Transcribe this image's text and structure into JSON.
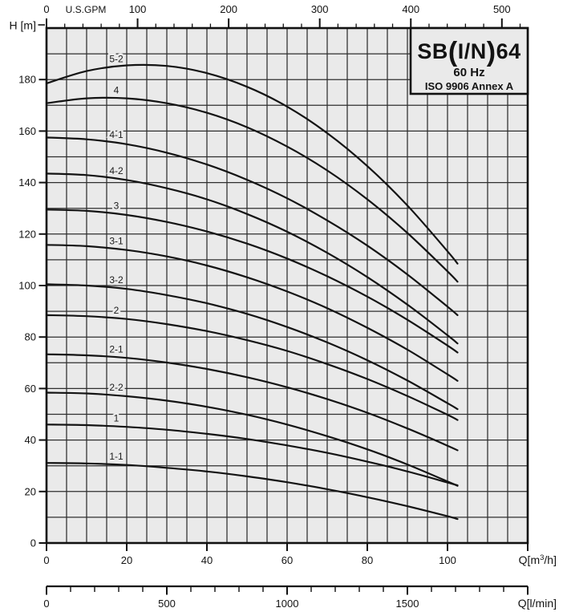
{
  "colors": {
    "background": "#ffffff",
    "plot_bg": "#eaeaea",
    "grid": "#2f2f2f",
    "curve": "#141414",
    "border": "#111111",
    "text": "#131313"
  },
  "title_block": {
    "model": "SB(I/N)64",
    "model_parts": [
      "SB",
      "(",
      "I/N",
      ")",
      "64"
    ],
    "frequency": "60 Hz",
    "standard": "ISO 9906 Annex A"
  },
  "chart_data": {
    "type": "line",
    "title": "SB(I/N)64",
    "subtitle": "60 Hz",
    "standard": "ISO 9906 Annex A",
    "grid": true,
    "legend": "none",
    "xlabel": "Q[m³/h]",
    "ylabel": "H [m]",
    "xlim": [
      0,
      120
    ],
    "ylim": [
      0,
      200
    ],
    "axes": {
      "y": {
        "label": "H [m]",
        "unit": "m",
        "min": 0,
        "max": 200,
        "label_ticks": [
          0,
          20,
          40,
          60,
          80,
          100,
          120,
          140,
          160,
          180
        ],
        "grid_step": 10
      },
      "x_m3h": {
        "label": "Q[m³/h]",
        "label_parts": {
          "pre": "Q[m",
          "sup": "3",
          "post": "/h]"
        },
        "unit": "m³/h",
        "min": 0,
        "max": 120,
        "label_ticks": [
          0,
          20,
          40,
          60,
          80,
          100
        ],
        "end_tick": 120,
        "grid_step": 5
      },
      "x_gpm": {
        "label": "U.S.GPM",
        "unit": "US gpm",
        "min": 0,
        "max": 520,
        "label_ticks": [
          0,
          100,
          200,
          300,
          400,
          500
        ],
        "minor_step": 20
      },
      "x_lmin": {
        "label": "Q[l/min]",
        "unit": "l/min",
        "min": 0,
        "max": 2000,
        "major_ticks": [
          0,
          500,
          1000,
          1500,
          2000
        ],
        "label_ticks": [
          0,
          500,
          1000,
          1500
        ],
        "minor_step": 100
      }
    },
    "series": [
      {
        "name": "5-2",
        "points": [
          [
            0,
            178.5
          ],
          [
            10,
            183.3
          ],
          [
            20,
            185.5
          ],
          [
            30,
            185.3
          ],
          [
            40,
            182.5
          ],
          [
            50,
            177.2
          ],
          [
            60,
            169.5
          ],
          [
            70,
            159.2
          ],
          [
            80,
            146.4
          ],
          [
            90,
            131.1
          ],
          [
            100,
            113.3
          ],
          [
            102.5,
            108.5
          ]
        ]
      },
      {
        "name": "4",
        "points": [
          [
            0,
            170.8
          ],
          [
            10,
            172.7
          ],
          [
            20,
            172.7
          ],
          [
            30,
            170.8
          ],
          [
            40,
            167.1
          ],
          [
            50,
            161.5
          ],
          [
            60,
            154.0
          ],
          [
            70,
            144.7
          ],
          [
            80,
            133.5
          ],
          [
            90,
            120.4
          ],
          [
            100,
            105.5
          ],
          [
            102.5,
            101.5
          ]
        ]
      },
      {
        "name": "4-1",
        "points": [
          [
            0,
            157.5
          ],
          [
            10,
            156.8
          ],
          [
            20,
            154.9
          ],
          [
            30,
            151.6
          ],
          [
            40,
            147.0
          ],
          [
            50,
            141.1
          ],
          [
            60,
            133.9
          ],
          [
            70,
            125.3
          ],
          [
            80,
            115.5
          ],
          [
            90,
            104.3
          ],
          [
            100,
            91.8
          ],
          [
            102.5,
            88.5
          ]
        ]
      },
      {
        "name": "4-2",
        "points": [
          [
            0,
            143.5
          ],
          [
            10,
            142.9
          ],
          [
            20,
            141.0
          ],
          [
            30,
            137.8
          ],
          [
            40,
            133.5
          ],
          [
            50,
            127.8
          ],
          [
            60,
            120.9
          ],
          [
            70,
            112.7
          ],
          [
            80,
            103.3
          ],
          [
            90,
            92.6
          ],
          [
            100,
            80.7
          ],
          [
            102.5,
            77.5
          ]
        ]
      },
      {
        "name": "3",
        "points": [
          [
            0,
            129.5
          ],
          [
            10,
            129.0
          ],
          [
            20,
            127.4
          ],
          [
            30,
            124.7
          ],
          [
            40,
            121.0
          ],
          [
            50,
            116.3
          ],
          [
            60,
            110.5
          ],
          [
            70,
            103.6
          ],
          [
            80,
            95.7
          ],
          [
            90,
            86.7
          ],
          [
            100,
            76.7
          ],
          [
            102.5,
            74.0
          ]
        ]
      },
      {
        "name": "3-1",
        "points": [
          [
            0,
            115.8
          ],
          [
            10,
            115.3
          ],
          [
            20,
            113.8
          ],
          [
            30,
            111.3
          ],
          [
            40,
            107.8
          ],
          [
            50,
            103.2
          ],
          [
            60,
            97.7
          ],
          [
            70,
            91.2
          ],
          [
            80,
            83.6
          ],
          [
            90,
            75.1
          ],
          [
            100,
            65.5
          ],
          [
            102.5,
            63.0
          ]
        ]
      },
      {
        "name": "3-2",
        "points": [
          [
            0,
            100.5
          ],
          [
            10,
            100.0
          ],
          [
            20,
            98.7
          ],
          [
            30,
            96.3
          ],
          [
            40,
            93.1
          ],
          [
            50,
            89.0
          ],
          [
            60,
            83.9
          ],
          [
            70,
            77.9
          ],
          [
            80,
            71.0
          ],
          [
            90,
            63.1
          ],
          [
            100,
            54.3
          ],
          [
            102.5,
            52.0
          ]
        ]
      },
      {
        "name": "2",
        "points": [
          [
            0,
            88.5
          ],
          [
            10,
            88.1
          ],
          [
            20,
            87.0
          ],
          [
            30,
            85.0
          ],
          [
            40,
            82.3
          ],
          [
            50,
            78.8
          ],
          [
            60,
            74.6
          ],
          [
            70,
            69.5
          ],
          [
            80,
            63.7
          ],
          [
            90,
            57.1
          ],
          [
            100,
            49.8
          ],
          [
            102.5,
            47.8
          ]
        ]
      },
      {
        "name": "2-1",
        "points": [
          [
            0,
            73.3
          ],
          [
            10,
            72.9
          ],
          [
            20,
            71.9
          ],
          [
            30,
            70.1
          ],
          [
            40,
            67.6
          ],
          [
            50,
            64.4
          ],
          [
            60,
            60.5
          ],
          [
            70,
            55.9
          ],
          [
            80,
            50.6
          ],
          [
            90,
            44.5
          ],
          [
            100,
            37.8
          ],
          [
            102.5,
            36.0
          ]
        ]
      },
      {
        "name": "2-2",
        "points": [
          [
            0,
            58.4
          ],
          [
            10,
            58.1
          ],
          [
            20,
            57.0
          ],
          [
            30,
            55.3
          ],
          [
            40,
            52.9
          ],
          [
            50,
            49.8
          ],
          [
            60,
            46.0
          ],
          [
            70,
            41.5
          ],
          [
            80,
            36.4
          ],
          [
            90,
            30.5
          ],
          [
            100,
            23.9
          ],
          [
            102.5,
            22.2
          ]
        ]
      },
      {
        "name": "1",
        "points": [
          [
            0,
            46.0
          ],
          [
            10,
            45.8
          ],
          [
            20,
            45.1
          ],
          [
            30,
            44.0
          ],
          [
            40,
            42.4
          ],
          [
            50,
            40.4
          ],
          [
            60,
            37.9
          ],
          [
            70,
            35.0
          ],
          [
            80,
            31.6
          ],
          [
            90,
            27.8
          ],
          [
            100,
            23.5
          ],
          [
            102.5,
            22.4
          ]
        ]
      },
      {
        "name": "1-1",
        "points": [
          [
            0,
            31.1
          ],
          [
            10,
            30.9
          ],
          [
            20,
            30.3
          ],
          [
            30,
            29.2
          ],
          [
            40,
            27.8
          ],
          [
            50,
            25.9
          ],
          [
            60,
            23.6
          ],
          [
            70,
            20.9
          ],
          [
            80,
            17.8
          ],
          [
            90,
            14.3
          ],
          [
            100,
            10.4
          ],
          [
            102.5,
            9.3
          ]
        ]
      }
    ]
  }
}
